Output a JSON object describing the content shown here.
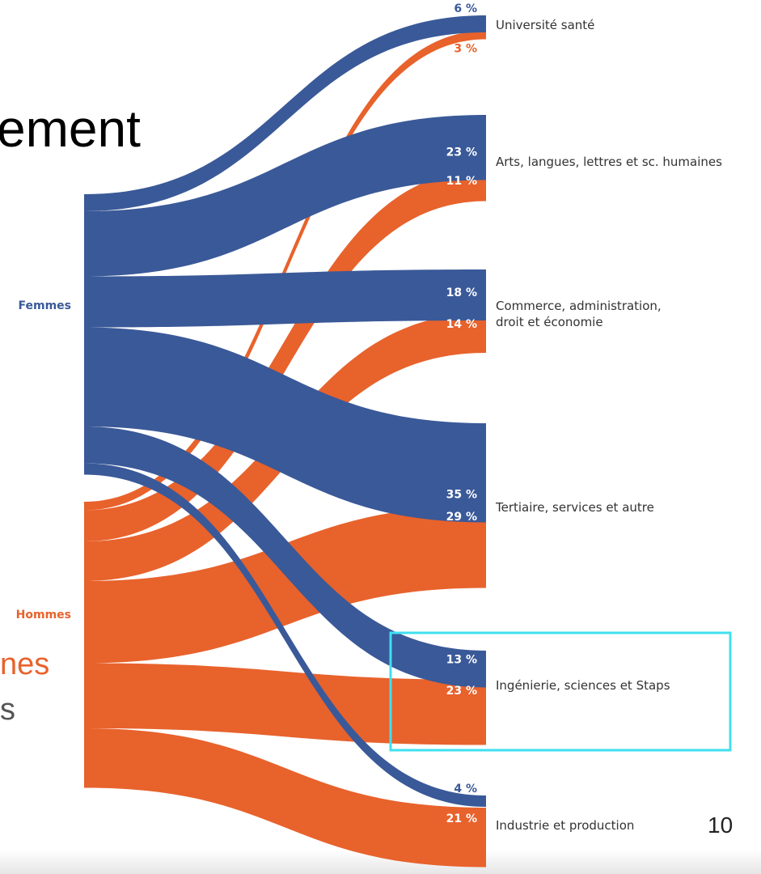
{
  "slide": {
    "title_fragment": "ement",
    "orange_fragment": "nes",
    "gray_fragment": "s",
    "page_number": "10"
  },
  "colors": {
    "femmes": "#3a5998",
    "hommes": "#e8622c",
    "highlight": "#3fe0f0",
    "label_text": "#333333"
  },
  "chart_data": {
    "type": "sankey",
    "title": "",
    "sources": [
      "Femmes",
      "Hommes"
    ],
    "destinations": [
      [
        "Université santé"
      ],
      [
        "Arts, langues, lettres et sc. humaines"
      ],
      [
        "Commerce, administration,",
        "droit et économie"
      ],
      [
        "Tertiaire, services et autre"
      ],
      [
        "Ingénierie, sciences et Staps"
      ],
      [
        "Industrie et production"
      ]
    ],
    "series": [
      {
        "name": "Femmes",
        "values": [
          6,
          23,
          18,
          35,
          13,
          4
        ]
      },
      {
        "name": "Hommes",
        "values": [
          3,
          11,
          14,
          29,
          23,
          21
        ]
      }
    ],
    "unit": "%",
    "highlighted_destination": "Ingénierie, sciences et Staps"
  }
}
